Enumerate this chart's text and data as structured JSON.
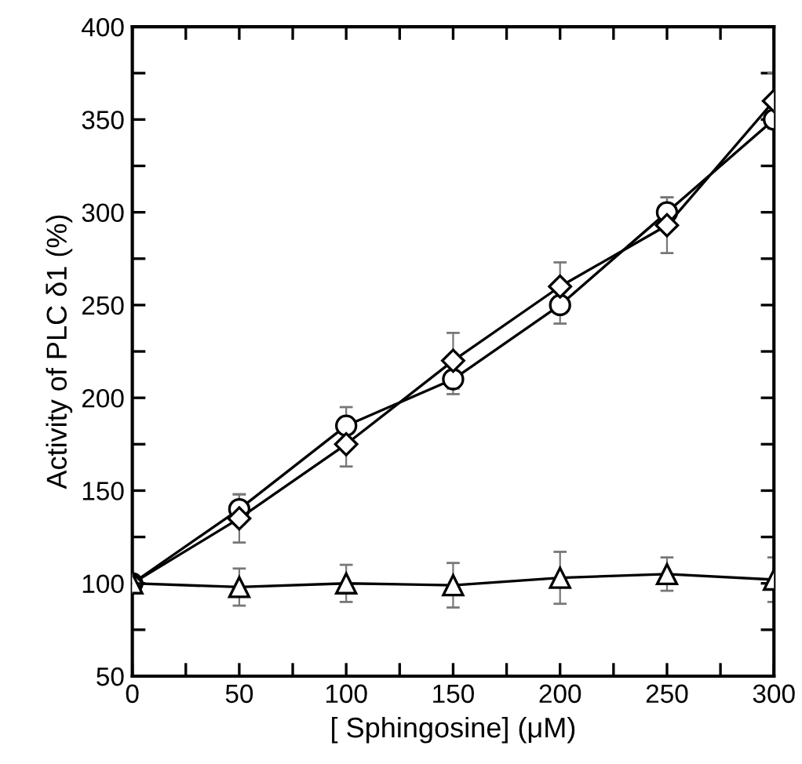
{
  "chart_data": {
    "type": "line",
    "xlabel": "[ Sphingosine] (μM)",
    "ylabel": "Activity of PLC δ1 (%)",
    "x": [
      0,
      50,
      100,
      150,
      200,
      250,
      300
    ],
    "xlim": [
      0,
      300
    ],
    "ylim": [
      50,
      400
    ],
    "xticks": [
      0,
      {
        "value": 25,
        "label": null
      },
      50,
      {
        "value": 75,
        "label": null
      },
      100,
      {
        "value": 125,
        "label": null
      },
      150,
      {
        "value": 175,
        "label": null
      },
      200,
      {
        "value": 225,
        "label": null
      },
      250,
      {
        "value": 275,
        "label": null
      },
      300
    ],
    "yticks": [
      50,
      {
        "value": 75,
        "label": null
      },
      100,
      {
        "value": 125,
        "label": null
      },
      150,
      {
        "value": 175,
        "label": null
      },
      200,
      {
        "value": 225,
        "label": null
      },
      250,
      {
        "value": 275,
        "label": null
      },
      300,
      {
        "value": 325,
        "label": null
      },
      350,
      {
        "value": 375,
        "label": null
      },
      400
    ],
    "grid": false,
    "legend": false,
    "line_style": "solid",
    "series": [
      {
        "color": "#000000",
        "marker": "circle",
        "values": [
          100,
          140,
          185,
          210,
          250,
          300,
          350
        ],
        "errors": [
          null,
          8,
          10,
          8,
          10,
          8,
          null
        ]
      },
      {
        "color": "#000000",
        "marker": "diamond",
        "values": [
          100,
          135,
          175,
          220,
          260,
          293,
          360
        ],
        "errors": [
          null,
          13,
          12,
          15,
          13,
          15,
          15
        ]
      },
      {
        "color": "#000000",
        "marker": "triangle",
        "values": [
          100,
          98,
          100,
          99,
          103,
          105,
          102
        ],
        "errors": [
          null,
          10,
          10,
          12,
          14,
          9,
          12
        ]
      }
    ]
  }
}
